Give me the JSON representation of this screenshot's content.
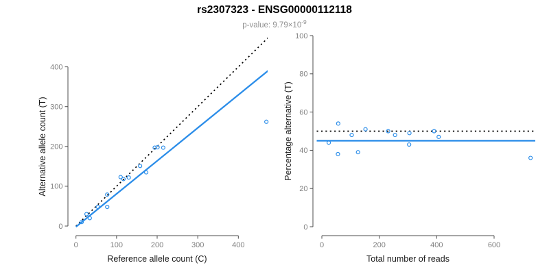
{
  "header": {
    "title": "rs2307323 - ENSG00000112118",
    "subtitle_base": "p-value: 9.79×10",
    "subtitle_exponent": "-9"
  },
  "colors": {
    "accent_blue": "#2b8de9",
    "reference_line": "#000000",
    "axis": "#4d4d4d",
    "tick_label": "#7f7f7f",
    "axis_label": "#1a1a1a"
  },
  "chart_data": [
    {
      "type": "scatter",
      "panel": "left",
      "xlabel": "Reference allele count (C)",
      "ylabel": "Alternative allele count (T)",
      "xticks": [
        0,
        100,
        200,
        300,
        400
      ],
      "yticks": [
        0,
        100,
        200,
        300,
        400
      ],
      "xlim": [
        0,
        480
      ],
      "ylim": [
        0,
        478
      ],
      "grid": false,
      "legend": "none",
      "points": [
        [
          14,
          10
        ],
        [
          26,
          30
        ],
        [
          34,
          20
        ],
        [
          54,
          48
        ],
        [
          77,
          48
        ],
        [
          77,
          79
        ],
        [
          110,
          123
        ],
        [
          117,
          118
        ],
        [
          130,
          122
        ],
        [
          158,
          151
        ],
        [
          173,
          135
        ],
        [
          194,
          197
        ],
        [
          201,
          198
        ],
        [
          215,
          197
        ],
        [
          469,
          262
        ]
      ],
      "lines": [
        {
          "name": "identity-line",
          "kind": "linear",
          "slope": 1,
          "intercept": 0,
          "style": "dotted",
          "color": "#000000"
        },
        {
          "name": "regression-line",
          "kind": "linear",
          "slope": 0.829,
          "intercept": -2,
          "style": "solid",
          "color": "#2b8de9"
        }
      ]
    },
    {
      "type": "scatter",
      "panel": "right",
      "xlabel": "Total number of reads",
      "ylabel": "Percentage alternative (T)",
      "xticks": [
        0,
        200,
        400,
        600
      ],
      "yticks": [
        0,
        20,
        40,
        60,
        80,
        100
      ],
      "xlim": [
        0,
        760
      ],
      "ylim": [
        0,
        100
      ],
      "grid": false,
      "legend": "none",
      "points": [
        [
          24,
          44
        ],
        [
          56,
          38
        ],
        [
          57,
          54
        ],
        [
          104,
          48
        ],
        [
          126,
          39
        ],
        [
          152,
          51
        ],
        [
          231,
          50
        ],
        [
          255,
          48
        ],
        [
          304,
          43
        ],
        [
          305,
          49
        ],
        [
          391,
          50
        ],
        [
          407,
          47
        ],
        [
          727,
          36
        ]
      ],
      "lines": [
        {
          "name": "expected-line",
          "kind": "hline",
          "y": 50,
          "style": "dotted",
          "color": "#000000"
        },
        {
          "name": "mean-line",
          "kind": "hline",
          "y": 45,
          "style": "solid",
          "color": "#2b8de9"
        }
      ]
    }
  ]
}
